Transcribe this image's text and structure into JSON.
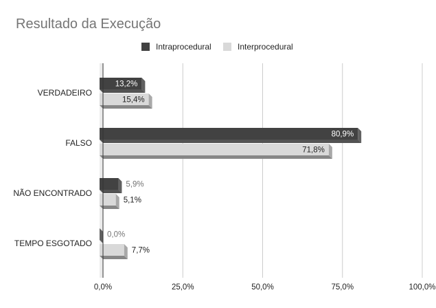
{
  "chart_data": {
    "type": "bar",
    "orientation": "horizontal",
    "three_d": true,
    "title": "Resultado da Execução",
    "categories": [
      "VERDADEIRO",
      "FALSO",
      "NÃO ENCONTRADO",
      "TEMPO ESGOTADO"
    ],
    "series": [
      {
        "name": "Intraprocedural",
        "values": [
          13.2,
          80.9,
          5.9,
          0.0
        ],
        "labels": [
          "13,2%",
          "80,9%",
          "5,9%",
          "0,0%"
        ],
        "color": "#424242"
      },
      {
        "name": "Interprocedural",
        "values": [
          15.4,
          71.8,
          5.1,
          7.7
        ],
        "labels": [
          "15,4%",
          "71,8%",
          "5,1%",
          "7,7%"
        ],
        "color": "#d9d9d9"
      }
    ],
    "xlim": [
      0,
      100
    ],
    "xticks": [
      0,
      25,
      50,
      75,
      100
    ],
    "xtick_labels": [
      "0,0%",
      "25,0%",
      "50,0%",
      "75,0%",
      "100,0%"
    ],
    "legend_position": "top",
    "grid": true
  }
}
